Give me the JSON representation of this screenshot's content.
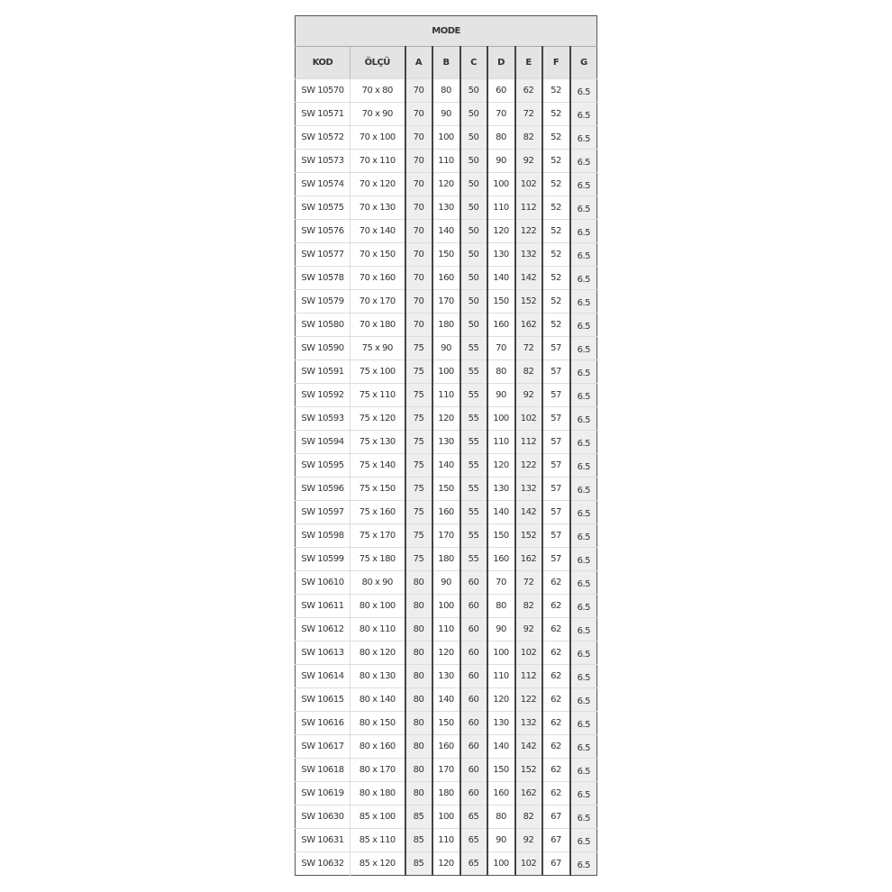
{
  "table": {
    "title": "MODE",
    "headers": [
      "KOD",
      "ÖLÇÜ",
      "A",
      "B",
      "C",
      "D",
      "E",
      "F",
      "G"
    ],
    "shaded_columns": [
      "A",
      "C",
      "E",
      "G"
    ],
    "shade_color": "#eeeeee",
    "rows": [
      [
        "SW 10570",
        "70 x 80",
        "70",
        "80",
        "50",
        "60",
        "62",
        "52",
        "6.5"
      ],
      [
        "SW 10571",
        "70 x 90",
        "70",
        "90",
        "50",
        "70",
        "72",
        "52",
        "6.5"
      ],
      [
        "SW 10572",
        "70 x 100",
        "70",
        "100",
        "50",
        "80",
        "82",
        "52",
        "6.5"
      ],
      [
        "SW 10573",
        "70 x 110",
        "70",
        "110",
        "50",
        "90",
        "92",
        "52",
        "6.5"
      ],
      [
        "SW 10574",
        "70 x 120",
        "70",
        "120",
        "50",
        "100",
        "102",
        "52",
        "6.5"
      ],
      [
        "SW 10575",
        "70 x 130",
        "70",
        "130",
        "50",
        "110",
        "112",
        "52",
        "6.5"
      ],
      [
        "SW 10576",
        "70 x 140",
        "70",
        "140",
        "50",
        "120",
        "122",
        "52",
        "6.5"
      ],
      [
        "SW 10577",
        "70 x 150",
        "70",
        "150",
        "50",
        "130",
        "132",
        "52",
        "6.5"
      ],
      [
        "SW 10578",
        "70 x 160",
        "70",
        "160",
        "50",
        "140",
        "142",
        "52",
        "6.5"
      ],
      [
        "SW 10579",
        "70 x 170",
        "70",
        "170",
        "50",
        "150",
        "152",
        "52",
        "6.5"
      ],
      [
        "SW 10580",
        "70 x 180",
        "70",
        "180",
        "50",
        "160",
        "162",
        "52",
        "6.5"
      ],
      [
        "SW 10590",
        "75 x 90",
        "75",
        "90",
        "55",
        "70",
        "72",
        "57",
        "6.5"
      ],
      [
        "SW 10591",
        "75 x 100",
        "75",
        "100",
        "55",
        "80",
        "82",
        "57",
        "6.5"
      ],
      [
        "SW 10592",
        "75 x 110",
        "75",
        "110",
        "55",
        "90",
        "92",
        "57",
        "6.5"
      ],
      [
        "SW 10593",
        "75 x 120",
        "75",
        "120",
        "55",
        "100",
        "102",
        "57",
        "6.5"
      ],
      [
        "SW 10594",
        "75 x 130",
        "75",
        "130",
        "55",
        "110",
        "112",
        "57",
        "6.5"
      ],
      [
        "SW 10595",
        "75 x 140",
        "75",
        "140",
        "55",
        "120",
        "122",
        "57",
        "6.5"
      ],
      [
        "SW 10596",
        "75 x 150",
        "75",
        "150",
        "55",
        "130",
        "132",
        "57",
        "6.5"
      ],
      [
        "SW 10597",
        "75 x 160",
        "75",
        "160",
        "55",
        "140",
        "142",
        "57",
        "6.5"
      ],
      [
        "SW 10598",
        "75 x 170",
        "75",
        "170",
        "55",
        "150",
        "152",
        "57",
        "6.5"
      ],
      [
        "SW 10599",
        "75 x 180",
        "75",
        "180",
        "55",
        "160",
        "162",
        "57",
        "6.5"
      ],
      [
        "SW 10610",
        "80 x 90",
        "80",
        "90",
        "60",
        "70",
        "72",
        "62",
        "6.5"
      ],
      [
        "SW 10611",
        "80 x 100",
        "80",
        "100",
        "60",
        "80",
        "82",
        "62",
        "6.5"
      ],
      [
        "SW 10612",
        "80 x 110",
        "80",
        "110",
        "60",
        "90",
        "92",
        "62",
        "6.5"
      ],
      [
        "SW 10613",
        "80 x 120",
        "80",
        "120",
        "60",
        "100",
        "102",
        "62",
        "6.5"
      ],
      [
        "SW 10614",
        "80 x 130",
        "80",
        "130",
        "60",
        "110",
        "112",
        "62",
        "6.5"
      ],
      [
        "SW 10615",
        "80 x 140",
        "80",
        "140",
        "60",
        "120",
        "122",
        "62",
        "6.5"
      ],
      [
        "SW 10616",
        "80 x 150",
        "80",
        "150",
        "60",
        "130",
        "132",
        "62",
        "6.5"
      ],
      [
        "SW 10617",
        "80 x 160",
        "80",
        "160",
        "60",
        "140",
        "142",
        "62",
        "6.5"
      ],
      [
        "SW 10618",
        "80 x 170",
        "80",
        "170",
        "60",
        "150",
        "152",
        "62",
        "6.5"
      ],
      [
        "SW 10619",
        "80 x 180",
        "80",
        "180",
        "60",
        "160",
        "162",
        "62",
        "6.5"
      ],
      [
        "SW 10630",
        "85 x 100",
        "85",
        "100",
        "65",
        "80",
        "82",
        "67",
        "6.5"
      ],
      [
        "SW 10631",
        "85 x 110",
        "85",
        "110",
        "65",
        "90",
        "92",
        "67",
        "6.5"
      ],
      [
        "SW 10632",
        "85 x 120",
        "85",
        "120",
        "65",
        "100",
        "102",
        "67",
        "6.5"
      ]
    ]
  }
}
